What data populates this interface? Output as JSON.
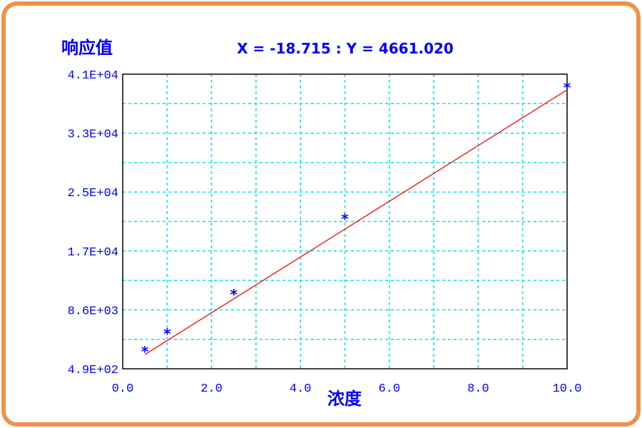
{
  "chart_data": {
    "type": "scatter",
    "title": "",
    "ylabel": "响应值",
    "xlabel": "浓度",
    "cursor_readout": "X = -18.715 : Y = 4661.020",
    "xlim": [
      0,
      10
    ],
    "ylim": [
      490,
      41000
    ],
    "x_ticks": [
      "0.0",
      "2.0",
      "4.0",
      "6.0",
      "8.0",
      "10.0"
    ],
    "y_ticks": [
      "4.9E+02",
      "8.6E+03",
      "1.7E+04",
      "2.5E+04",
      "3.3E+04",
      "4.1E+04"
    ],
    "grid": true,
    "points": [
      {
        "x": 0.5,
        "y": 3240
      },
      {
        "x": 1.0,
        "y": 5690
      },
      {
        "x": 2.5,
        "y": 11090
      },
      {
        "x": 5.0,
        "y": 21480
      },
      {
        "x": 10.0,
        "y": 39530
      }
    ],
    "fit_line": {
      "x": [
        0.5,
        10.0
      ],
      "y": [
        2450,
        38850
      ]
    },
    "colors": {
      "points": "#0000ff",
      "fit_line": "#ff0000",
      "grid": "#00e5ee",
      "border": "#f0914a",
      "text": "#0000ff"
    }
  }
}
